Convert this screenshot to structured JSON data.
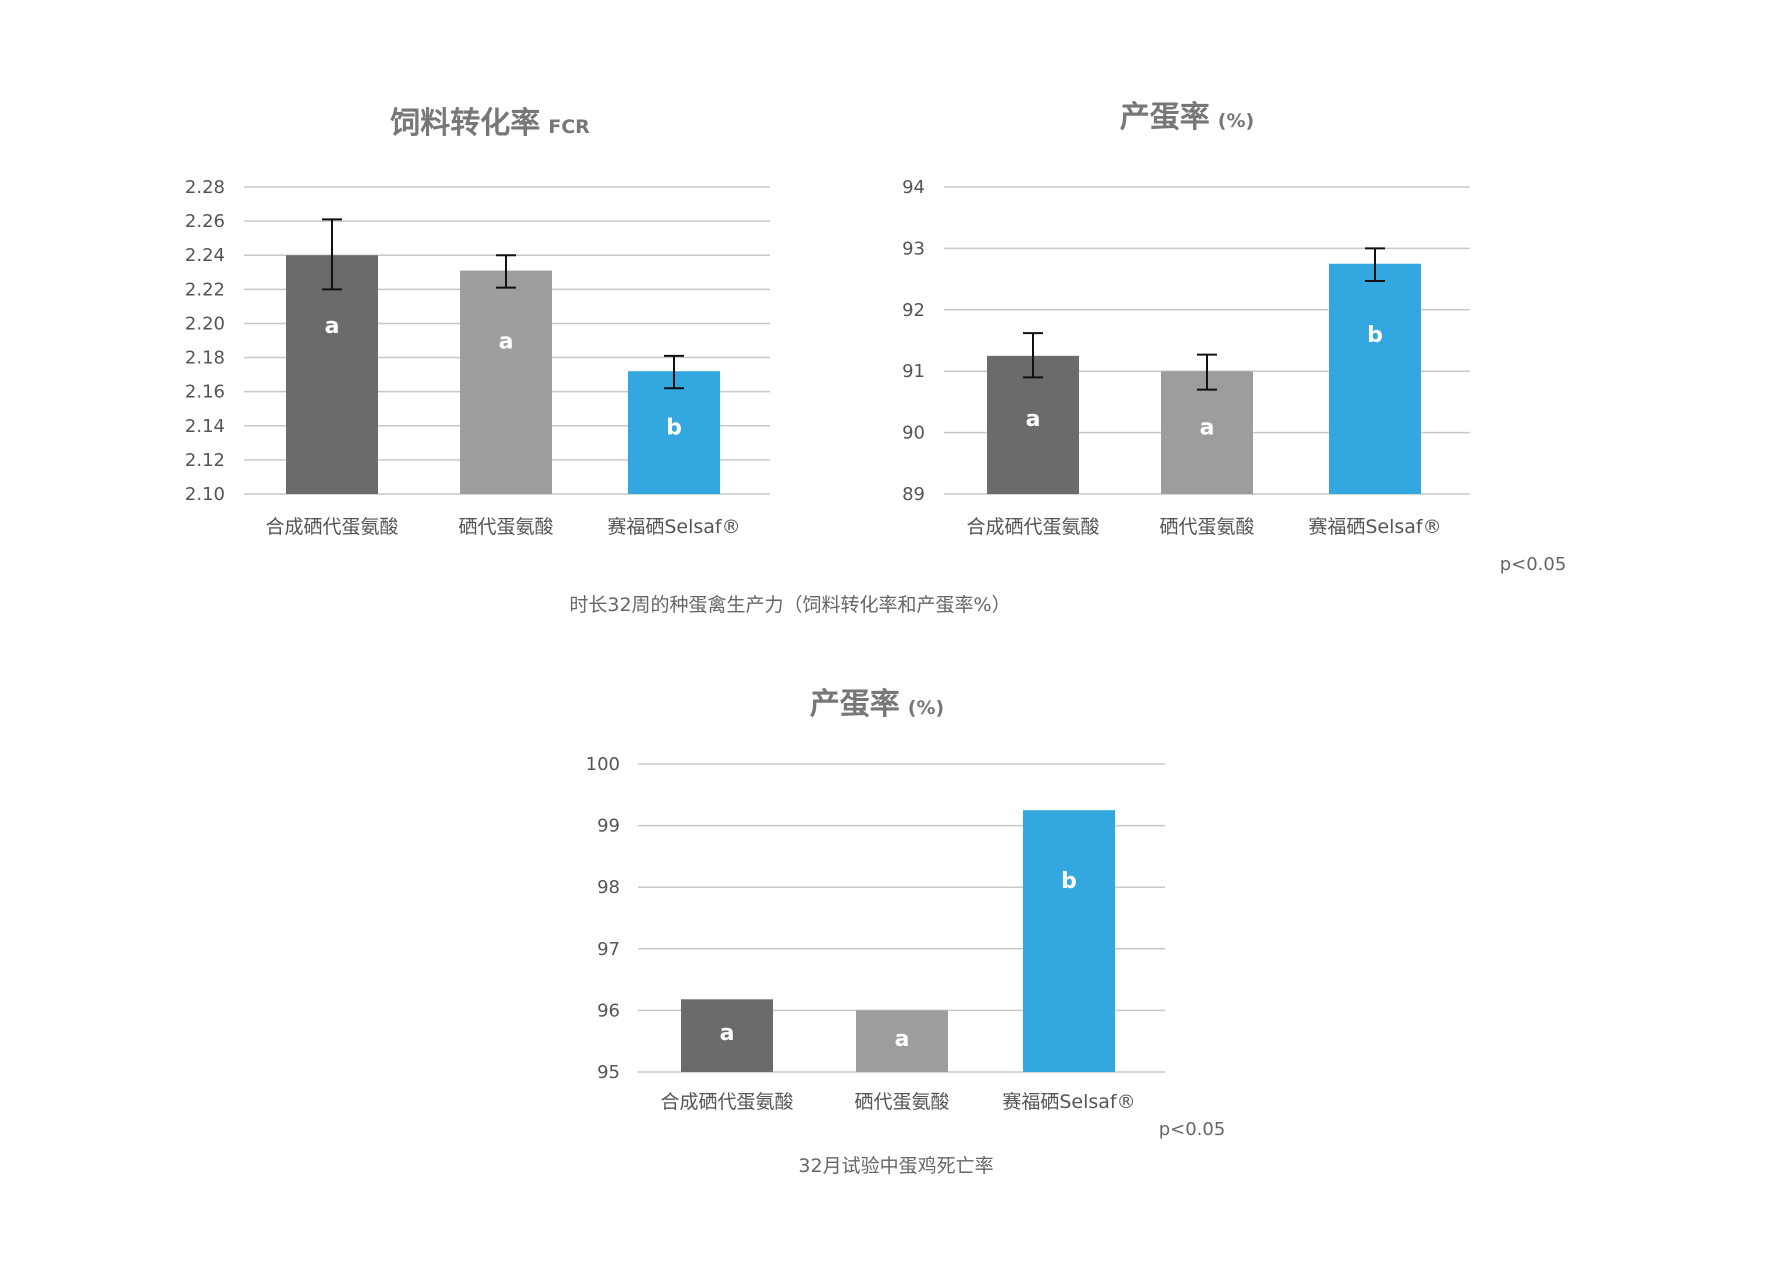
{
  "captions": {
    "top": "时长32周的种蛋禽生产力（饲料转化率和产蛋率%）",
    "bottom": "32月试验中蛋鸡死亡率"
  },
  "chart_data": [
    {
      "type": "bar",
      "title": "饲料转化率",
      "title_unit": "FCR",
      "categories": [
        "合成硒代蛋氨酸",
        "硒代蛋氨酸",
        "赛福硒Selsaf®"
      ],
      "values": [
        2.24,
        2.231,
        2.172
      ],
      "errors": [
        [
          2.22,
          2.261
        ],
        [
          2.221,
          2.24
        ],
        [
          2.162,
          2.181
        ]
      ],
      "significance": [
        "a",
        "a",
        "b"
      ],
      "colors": [
        "#6b6b6b",
        "#9d9d9d",
        "#33a8e0"
      ],
      "ylim": [
        2.1,
        2.28
      ],
      "yticks": [
        "2.28",
        "2.26",
        "2.24",
        "2.22",
        "2.20",
        "2.18",
        "2.16",
        "2.14",
        "2.12",
        "2.10"
      ],
      "grid": true,
      "note": ""
    },
    {
      "type": "bar",
      "title": "产蛋率",
      "title_unit": "(%)",
      "categories": [
        "合成硒代蛋氨酸",
        "硒代蛋氨酸",
        "赛福硒Selsaf®"
      ],
      "values": [
        91.25,
        91.0,
        92.75
      ],
      "errors": [
        [
          90.9,
          91.62
        ],
        [
          90.7,
          91.27
        ],
        [
          92.47,
          93.0
        ]
      ],
      "significance": [
        "a",
        "a",
        "b"
      ],
      "colors": [
        "#6b6b6b",
        "#9d9d9d",
        "#33a8e0"
      ],
      "ylim": [
        89,
        94
      ],
      "yticks": [
        "94",
        "93",
        "92",
        "91",
        "90",
        "89"
      ],
      "grid": true,
      "note": "p<0.05"
    },
    {
      "type": "bar",
      "title": "产蛋率",
      "title_unit": "(%)",
      "categories": [
        "合成硒代蛋氨酸",
        "硒代蛋氨酸",
        "赛福硒Selsaf®"
      ],
      "values": [
        96.18,
        96.0,
        99.25
      ],
      "errors": [],
      "significance": [
        "a",
        "a",
        "b"
      ],
      "colors": [
        "#6b6b6b",
        "#9d9d9d",
        "#33a8e0"
      ],
      "ylim": [
        95,
        100
      ],
      "yticks": [
        "100",
        "99",
        "98",
        "97",
        "96",
        "95"
      ],
      "grid": true,
      "note": "p<0.05"
    }
  ]
}
